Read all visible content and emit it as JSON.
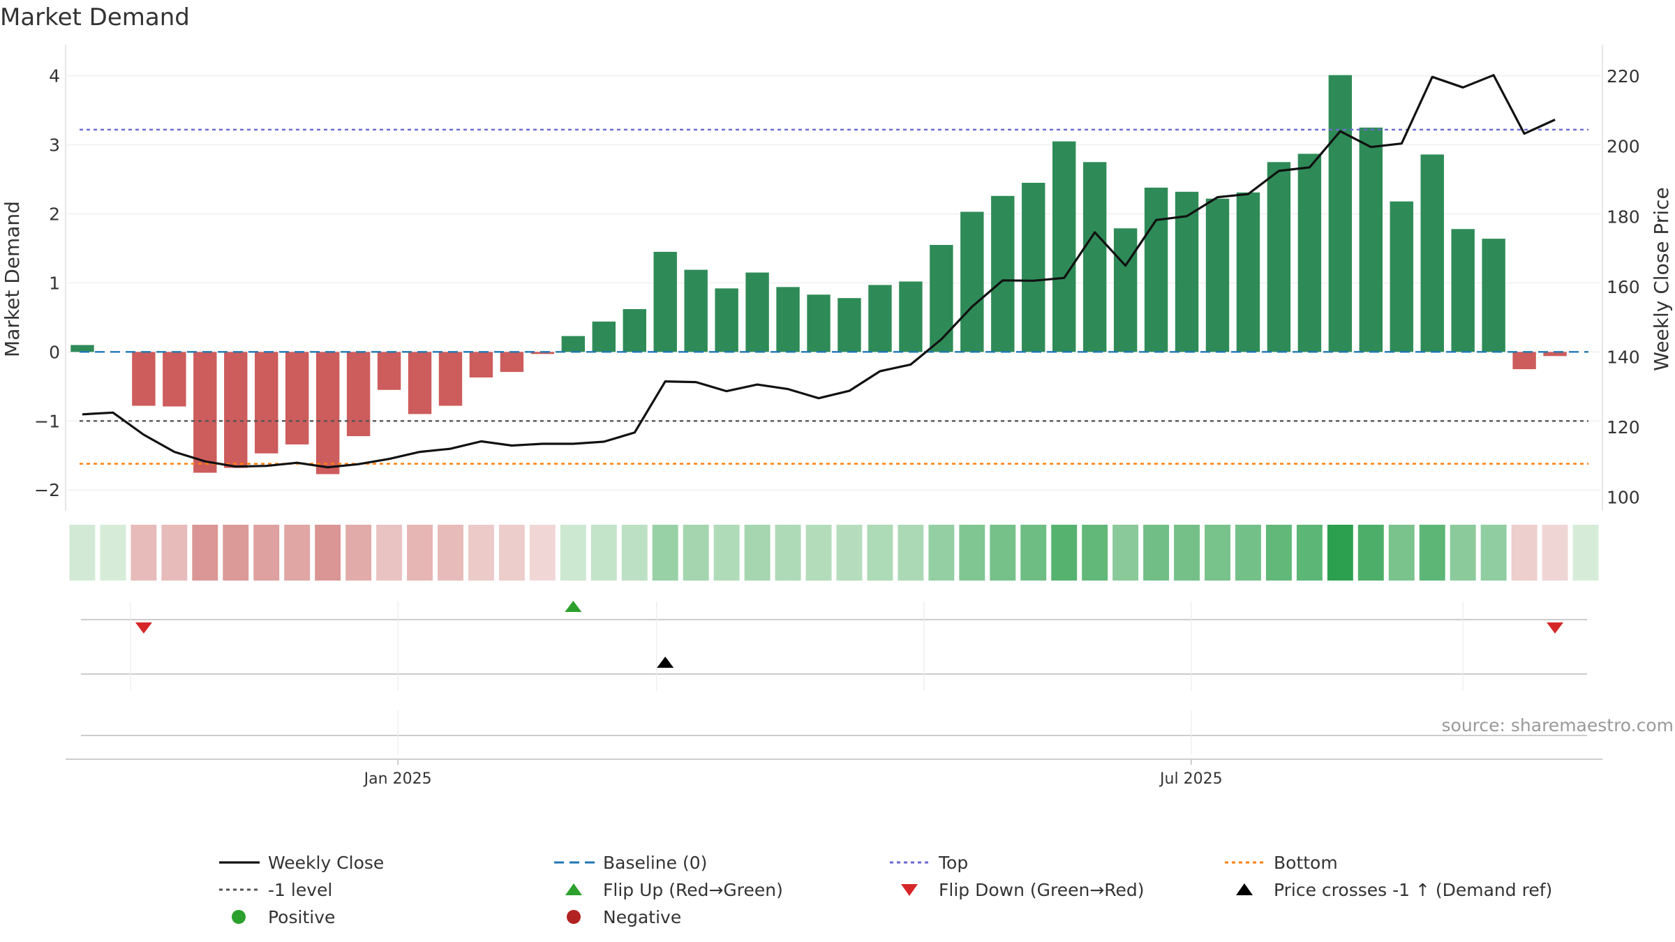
{
  "chart_data": {
    "type": "bar",
    "title": "Market Demand",
    "ylabel": "Market Demand",
    "y2label": "Weekly Close Price",
    "source": "source: sharemaestro.com",
    "ylim": [
      -2.2,
      4.35
    ],
    "y2lim": [
      98.1,
      227.0
    ],
    "yticks": [
      {
        "v": 4,
        "label": "4"
      },
      {
        "v": 3,
        "label": "3"
      },
      {
        "v": 2,
        "label": "2"
      },
      {
        "v": 1,
        "label": "1"
      },
      {
        "v": 0,
        "label": "0"
      },
      {
        "v": -1,
        "label": "−1"
      },
      {
        "v": -2,
        "label": "−2"
      }
    ],
    "y2ticks": [
      {
        "v": 220,
        "label": "220"
      },
      {
        "v": 200,
        "label": "200"
      },
      {
        "v": 180,
        "label": "180"
      },
      {
        "v": 160,
        "label": "160"
      },
      {
        "v": 140,
        "label": "140"
      },
      {
        "v": 120,
        "label": "120"
      },
      {
        "v": 100,
        "label": "100"
      }
    ],
    "x_ticks": [
      {
        "label": "Jan 2025",
        "date": "2025-01-01"
      },
      {
        "label": "Jul 2025",
        "date": "2025-07-01"
      }
    ],
    "x": [
      "2024-10-21",
      "2024-10-28",
      "2024-11-04",
      "2024-11-11",
      "2024-11-18",
      "2024-11-25",
      "2024-12-02",
      "2024-12-09",
      "2024-12-16",
      "2024-12-23",
      "2024-12-30",
      "2025-01-06",
      "2025-01-13",
      "2025-01-20",
      "2025-01-27",
      "2025-02-03",
      "2025-02-10",
      "2025-02-17",
      "2025-02-24",
      "2025-03-03",
      "2025-03-10",
      "2025-03-17",
      "2025-03-24",
      "2025-03-31",
      "2025-04-07",
      "2025-04-14",
      "2025-04-21",
      "2025-04-28",
      "2025-05-05",
      "2025-05-12",
      "2025-05-19",
      "2025-05-26",
      "2025-06-02",
      "2025-06-09",
      "2025-06-16",
      "2025-06-23",
      "2025-06-30",
      "2025-07-07",
      "2025-07-14",
      "2025-07-21",
      "2025-07-28",
      "2025-08-04",
      "2025-08-11",
      "2025-08-18",
      "2025-08-25",
      "2025-09-01",
      "2025-09-08",
      "2025-09-15",
      "2025-09-22",
      "2025-09-29"
    ],
    "series": [
      {
        "name": "Market Demand",
        "kind": "bar",
        "values": [
          0.1,
          0.0,
          -0.78,
          -0.79,
          -1.75,
          -1.68,
          -1.47,
          -1.34,
          -1.77,
          -1.22,
          -0.55,
          -0.9,
          -0.78,
          -0.37,
          -0.29,
          -0.03,
          0.23,
          0.44,
          0.62,
          1.45,
          1.19,
          0.92,
          1.15,
          0.94,
          0.83,
          0.78,
          0.97,
          1.02,
          1.55,
          2.03,
          2.26,
          2.45,
          3.05,
          2.75,
          1.79,
          2.38,
          2.32,
          2.22,
          2.31,
          2.75,
          2.87,
          4.01,
          3.25,
          2.18,
          2.86,
          1.78,
          1.64,
          -0.25,
          -0.06,
          0.0
        ]
      },
      {
        "name": "Weekly Close",
        "kind": "line",
        "values": [
          123.6,
          124.1,
          117.8,
          112.9,
          110.2,
          108.7,
          108.9,
          109.8,
          108.5,
          109.4,
          110.9,
          112.9,
          113.8,
          115.9,
          114.7,
          115.2,
          115.2,
          115.8,
          118.4,
          133.0,
          132.8,
          130.2,
          132.1,
          130.8,
          128.2,
          130.3,
          135.9,
          137.8,
          145.0,
          154.3,
          161.8,
          161.7,
          162.5,
          175.5,
          166.0,
          179.0,
          180.1,
          185.5,
          186.4,
          193.0,
          194.0,
          204.3,
          199.8,
          200.8,
          219.8,
          216.8,
          220.3,
          203.6,
          207.6,
          null
        ]
      }
    ],
    "reference_lines": [
      {
        "name": "Baseline (0)",
        "axis": "left",
        "value": 0,
        "color": "#1f77b4",
        "style": "dashed"
      },
      {
        "name": "Top",
        "axis": "left",
        "value": 3.22,
        "color": "#6a6ad0",
        "style": "dotted"
      },
      {
        "name": "Bottom",
        "axis": "left",
        "value": -1.62,
        "color": "#ff7f0e",
        "style": "dotted"
      },
      {
        "name": "-1 level",
        "axis": "left",
        "value": -1,
        "color": "#555555",
        "style": "dotted"
      }
    ],
    "heatmap_strip": {
      "source": "Market Demand"
    },
    "events": [
      {
        "name": "Flip Down (Green→Red)",
        "date": "2024-11-04",
        "row": 1
      },
      {
        "name": "Flip Up (Red→Green)",
        "date": "2025-02-10",
        "row": 1
      },
      {
        "name": "Flip Down (Green→Red)",
        "date": "2025-09-22",
        "row": 1
      },
      {
        "name": "Price crosses -1 ↑ (Demand ref)",
        "date": "2025-03-03",
        "row": 2
      }
    ],
    "legend_placement": "bottom",
    "legend": [
      {
        "label": "Weekly Close",
        "symbol": "line",
        "color": "#111111"
      },
      {
        "label": "Baseline (0)",
        "symbol": "dashed",
        "color": "#1f77b4"
      },
      {
        "label": "Top",
        "symbol": "dotted",
        "color": "#6a6ad0"
      },
      {
        "label": "Bottom",
        "symbol": "dotted",
        "color": "#ff7f0e"
      },
      {
        "label": "-1 level",
        "symbol": "dotted",
        "color": "#555555"
      },
      {
        "label": "Flip Up (Red→Green)",
        "symbol": "triangle-up",
        "color": "#2ca02c"
      },
      {
        "label": "Flip Down (Green→Red)",
        "symbol": "triangle-down",
        "color": "#d62728"
      },
      {
        "label": "Price crosses -1 ↑ (Demand ref)",
        "symbol": "triangle-up",
        "color": "#000000"
      },
      {
        "label": "Positive",
        "symbol": "dot",
        "color": "#2ca02c"
      },
      {
        "label": "Negative",
        "symbol": "dot",
        "color": "#b22222"
      }
    ],
    "colors": {
      "positive_bar": "#2e8b57",
      "negative_bar": "#cd5c5c",
      "price_line": "#111111",
      "grid": "#e6e6e6"
    }
  }
}
